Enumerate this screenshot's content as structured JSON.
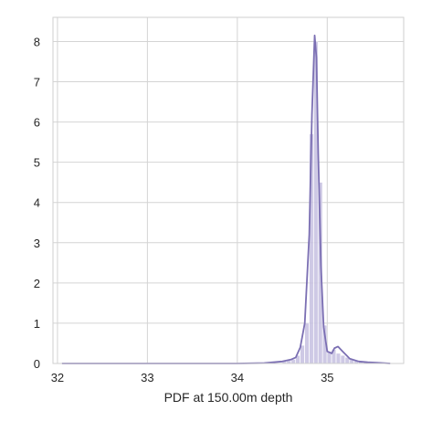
{
  "chart_data": {
    "type": "histogram",
    "xlabel": "PDF at 150.00m depth",
    "ylabel": "",
    "title": "",
    "xlim": [
      31.95,
      35.85
    ],
    "ylim": [
      0,
      8.6
    ],
    "xticks": [
      32,
      33,
      34,
      35
    ],
    "yticks": [
      0,
      1,
      2,
      3,
      4,
      5,
      6,
      7,
      8
    ],
    "grid": true,
    "colors": {
      "line": "#7b6fb3",
      "bar_fill": "#c5c0e0",
      "grid": "#d4d4d4",
      "axes_edge": "#cfcfcf"
    },
    "histogram": {
      "bin_width": 0.05,
      "bars": [
        {
          "x": 34.5,
          "height": 0.05
        },
        {
          "x": 34.55,
          "height": 0.07
        },
        {
          "x": 34.6,
          "height": 0.1
        },
        {
          "x": 34.65,
          "height": 0.2
        },
        {
          "x": 34.7,
          "height": 0.45
        },
        {
          "x": 34.75,
          "height": 1.0
        },
        {
          "x": 34.8,
          "height": 5.7
        },
        {
          "x": 34.85,
          "height": 8.0
        },
        {
          "x": 34.9,
          "height": 4.5
        },
        {
          "x": 34.95,
          "height": 0.95
        },
        {
          "x": 35.0,
          "height": 0.3
        },
        {
          "x": 35.05,
          "height": 0.35
        },
        {
          "x": 35.1,
          "height": 0.25
        },
        {
          "x": 35.15,
          "height": 0.2
        },
        {
          "x": 35.2,
          "height": 0.15
        },
        {
          "x": 35.25,
          "height": 0.1
        },
        {
          "x": 35.3,
          "height": 0.08
        },
        {
          "x": 35.35,
          "height": 0.06
        },
        {
          "x": 35.4,
          "height": 0.04
        }
      ]
    },
    "kde": {
      "x": [
        32.05,
        33.0,
        34.0,
        34.3,
        34.4,
        34.5,
        34.6,
        34.65,
        34.7,
        34.75,
        34.8,
        34.83,
        34.86,
        34.88,
        34.9,
        34.93,
        34.96,
        35.0,
        35.05,
        35.08,
        35.12,
        35.17,
        35.25,
        35.35,
        35.45,
        35.55,
        35.7
      ],
      "y": [
        0,
        0,
        0,
        0.01,
        0.03,
        0.05,
        0.1,
        0.15,
        0.4,
        1.0,
        3.2,
        6.2,
        8.15,
        7.6,
        5.2,
        2.4,
        0.9,
        0.3,
        0.25,
        0.38,
        0.42,
        0.3,
        0.12,
        0.05,
        0.03,
        0.02,
        0.0
      ]
    }
  }
}
